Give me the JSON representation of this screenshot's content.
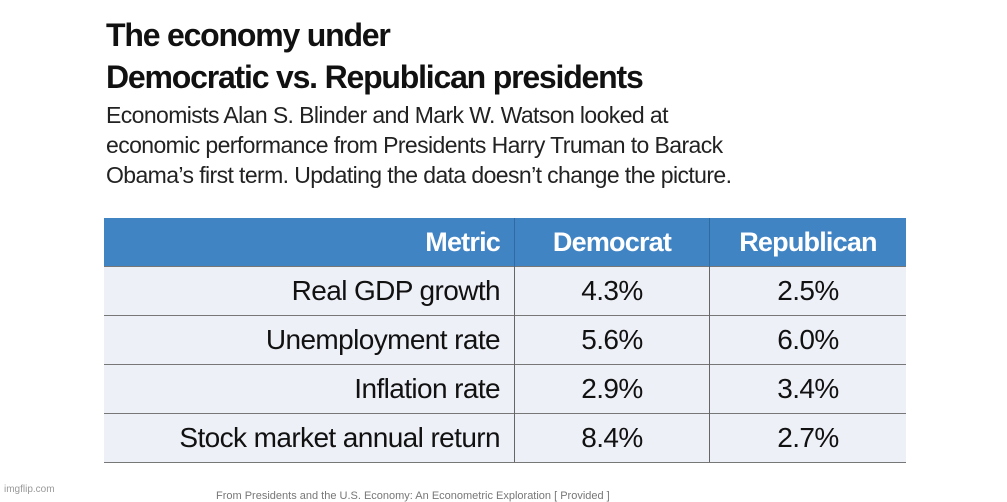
{
  "title": [
    "The economy under",
    "Democratic vs. Republican presidents"
  ],
  "subtitle": [
    "Economists Alan S. Blinder and Mark W. Watson looked at",
    "economic performance from Presidents Harry Truman to Barack",
    "Obama’s first term. Updating the data doesn’t change the picture."
  ],
  "table": {
    "headers": [
      "Metric",
      "Democrat",
      "Republican"
    ],
    "rows": [
      [
        "Real GDP growth",
        "4.3%",
        "2.5%"
      ],
      [
        "Unemployment rate",
        "5.6%",
        "6.0%"
      ],
      [
        "Inflation rate",
        "2.9%",
        "3.4%"
      ],
      [
        "Stock market annual return",
        "8.4%",
        "2.7%"
      ]
    ]
  },
  "credit": "From Presidents and the U.S. Economy: An Econometric Exploration [ Provided ]",
  "watermark": "imgflip.com",
  "colors": {
    "header": "#4184c4",
    "row": "#eef0f8"
  }
}
